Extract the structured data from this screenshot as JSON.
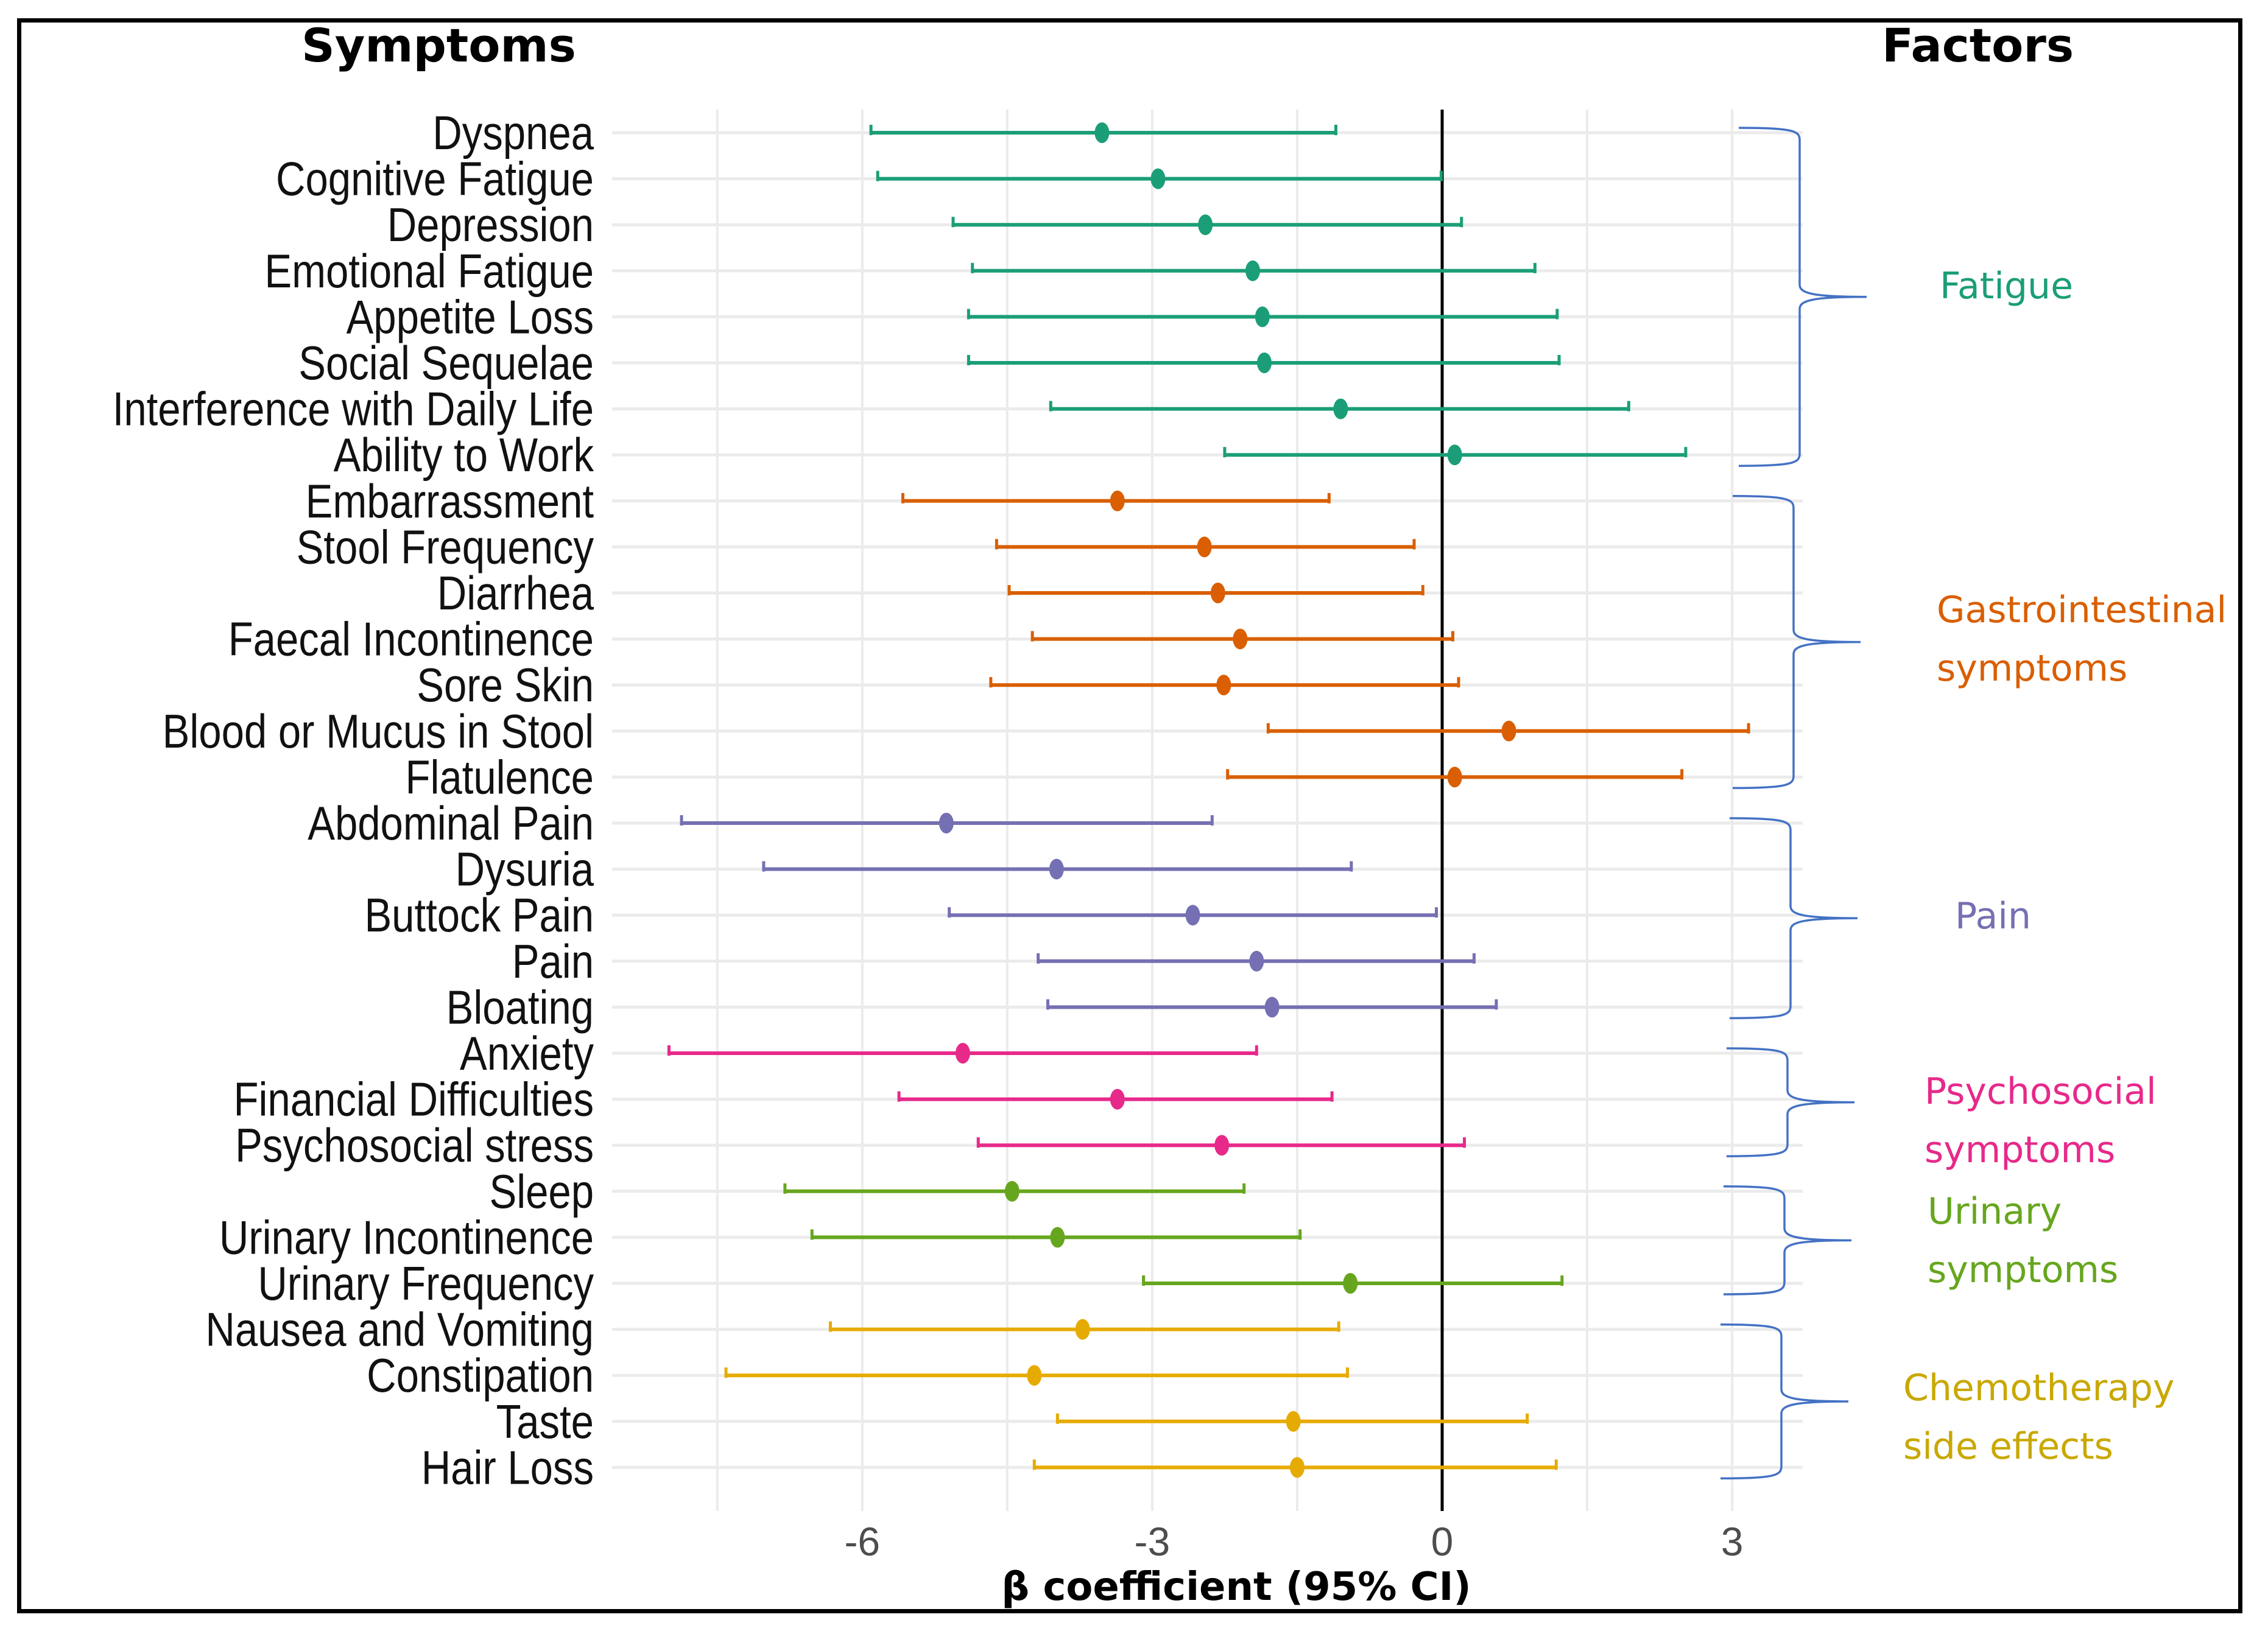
{
  "headers": {
    "symptoms": "Symptoms",
    "factors": "Factors"
  },
  "chart_data": {
    "type": "forest",
    "title": "",
    "xlabel": "β coefficient (95% CI)",
    "ylabel": "Symptoms",
    "xlim": [
      -8.5,
      3.75
    ],
    "xticks": [
      -6,
      -3,
      0,
      3
    ],
    "xtick_labels": [
      "-6",
      "-3",
      "0",
      "3"
    ],
    "minor_gridlines": [
      -7.5,
      -4.5,
      -1.5,
      1.5
    ],
    "reference_line": 0,
    "grid": true,
    "groups": [
      {
        "name": "Fatigue",
        "label_lines": [
          "Fatigue"
        ],
        "color": "#1b9e77"
      },
      {
        "name": "Gastrointestinal symptoms",
        "label_lines": [
          "Gastrointestinal",
          "symptoms"
        ],
        "color": "#d95f02"
      },
      {
        "name": "Pain",
        "label_lines": [
          "Pain"
        ],
        "color": "#7570b3"
      },
      {
        "name": "Psychosocial symptoms",
        "label_lines": [
          "Psychosocial",
          "symptoms"
        ],
        "color": "#e7298a"
      },
      {
        "name": "Urinary symptoms",
        "label_lines": [
          "Urinary",
          "symptoms"
        ],
        "color": "#66a61e"
      },
      {
        "name": "Chemotherapy side effects",
        "label_lines": [
          "Chemotherapy",
          "side effects"
        ],
        "color": "#e6ab02"
      }
    ],
    "factor_label_colors": [
      "#1b9e77",
      "#d95f02",
      "#7570b3",
      "#e7298a",
      "#66a61e",
      "#c9a800"
    ],
    "brace_color": "#4472c4",
    "rows": [
      {
        "label": "Dyspnea",
        "group": 0,
        "estimate": -3.52,
        "lower": -5.91,
        "upper": -1.1
      },
      {
        "label": "Cognitive Fatigue",
        "group": 0,
        "estimate": -2.94,
        "lower": -5.84,
        "upper": -0.01
      },
      {
        "label": "Depression",
        "group": 0,
        "estimate": -2.45,
        "lower": -5.06,
        "upper": 0.2
      },
      {
        "label": "Emotional Fatigue",
        "group": 0,
        "estimate": -1.96,
        "lower": -4.86,
        "upper": 0.96
      },
      {
        "label": "Appetite Loss",
        "group": 0,
        "estimate": -1.86,
        "lower": -4.9,
        "upper": 1.19
      },
      {
        "label": "Social Sequelae",
        "group": 0,
        "estimate": -1.84,
        "lower": -4.9,
        "upper": 1.21
      },
      {
        "label": "Interference with Daily Life",
        "group": 0,
        "estimate": -1.05,
        "lower": -4.05,
        "upper": 1.93
      },
      {
        "label": "Ability to Work",
        "group": 0,
        "estimate": 0.13,
        "lower": -2.25,
        "upper": 2.52
      },
      {
        "label": "Embarrassment",
        "group": 1,
        "estimate": -3.36,
        "lower": -5.58,
        "upper": -1.17
      },
      {
        "label": "Stool Frequency",
        "group": 1,
        "estimate": -2.46,
        "lower": -4.61,
        "upper": -0.29
      },
      {
        "label": "Diarrhea",
        "group": 1,
        "estimate": -2.32,
        "lower": -4.48,
        "upper": -0.2
      },
      {
        "label": "Faecal Incontinence",
        "group": 1,
        "estimate": -2.09,
        "lower": -4.24,
        "upper": 0.11
      },
      {
        "label": "Sore Skin",
        "group": 1,
        "estimate": -2.26,
        "lower": -4.67,
        "upper": 0.17
      },
      {
        "label": "Blood or Mucus in Stool",
        "group": 1,
        "estimate": 0.69,
        "lower": -1.8,
        "upper": 3.17
      },
      {
        "label": "Flatulence",
        "group": 1,
        "estimate": 0.13,
        "lower": -2.22,
        "upper": 2.48
      },
      {
        "label": "Abdominal Pain",
        "group": 2,
        "estimate": -5.13,
        "lower": -7.87,
        "upper": -2.38
      },
      {
        "label": "Dysuria",
        "group": 2,
        "estimate": -3.99,
        "lower": -7.02,
        "upper": -0.94
      },
      {
        "label": "Buttock Pain",
        "group": 2,
        "estimate": -2.58,
        "lower": -5.1,
        "upper": -0.06
      },
      {
        "label": "Pain",
        "group": 2,
        "estimate": -1.92,
        "lower": -4.18,
        "upper": 0.33
      },
      {
        "label": "Bloating",
        "group": 2,
        "estimate": -1.76,
        "lower": -4.08,
        "upper": 0.56
      },
      {
        "label": "Anxiety",
        "group": 3,
        "estimate": -4.96,
        "lower": -8.0,
        "upper": -1.92
      },
      {
        "label": "Financial Difficulties",
        "group": 3,
        "estimate": -3.36,
        "lower": -5.62,
        "upper": -1.14
      },
      {
        "label": "Psychosocial stress",
        "group": 3,
        "estimate": -2.28,
        "lower": -4.8,
        "upper": 0.23
      },
      {
        "label": "Sleep",
        "group": 4,
        "estimate": -4.45,
        "lower": -6.8,
        "upper": -2.05
      },
      {
        "label": "Urinary Incontinence",
        "group": 4,
        "estimate": -3.98,
        "lower": -6.52,
        "upper": -1.47
      },
      {
        "label": "Urinary Frequency",
        "group": 4,
        "estimate": -0.95,
        "lower": -3.09,
        "upper": 1.24
      },
      {
        "label": "Nausea and Vomiting",
        "group": 5,
        "estimate": -3.72,
        "lower": -6.33,
        "upper": -1.07
      },
      {
        "label": "Constipation",
        "group": 5,
        "estimate": -4.22,
        "lower": -7.41,
        "upper": -0.98
      },
      {
        "label": "Taste",
        "group": 5,
        "estimate": -1.54,
        "lower": -3.98,
        "upper": 0.88
      },
      {
        "label": "Hair Loss",
        "group": 5,
        "estimate": -1.5,
        "lower": -4.22,
        "upper": 1.18
      }
    ]
  }
}
